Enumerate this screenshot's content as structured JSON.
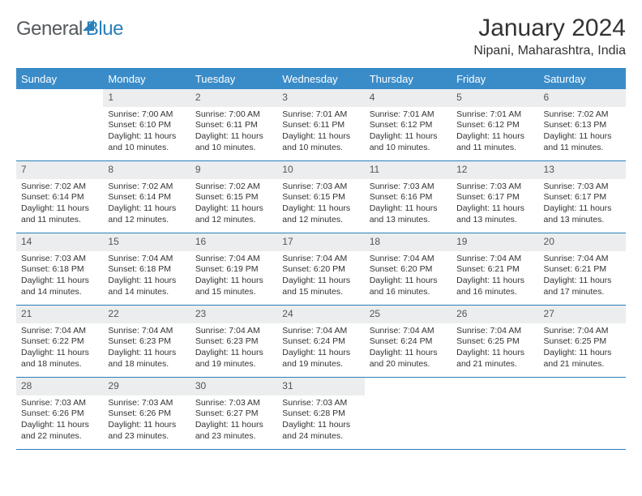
{
  "brand": {
    "part1": "General",
    "part2": "Blue"
  },
  "title": "January 2024",
  "location": "Nipani, Maharashtra, India",
  "colors": {
    "header_bg": "#3a8cc9",
    "header_text": "#ffffff",
    "border": "#2a7fba",
    "daynum_bg": "#ecedee",
    "text": "#333333",
    "brand_gray": "#555a5e",
    "brand_blue": "#2a7fba",
    "background": "#ffffff"
  },
  "typography": {
    "title_fontsize": 30,
    "location_fontsize": 16,
    "header_fontsize": 13,
    "daynum_fontsize": 12,
    "cell_fontsize": 10.5
  },
  "day_names": [
    "Sunday",
    "Monday",
    "Tuesday",
    "Wednesday",
    "Thursday",
    "Friday",
    "Saturday"
  ],
  "first_weekday_index": 1,
  "days": [
    {
      "n": 1,
      "sunrise": "7:00 AM",
      "sunset": "6:10 PM",
      "daylight": "11 hours and 10 minutes."
    },
    {
      "n": 2,
      "sunrise": "7:00 AM",
      "sunset": "6:11 PM",
      "daylight": "11 hours and 10 minutes."
    },
    {
      "n": 3,
      "sunrise": "7:01 AM",
      "sunset": "6:11 PM",
      "daylight": "11 hours and 10 minutes."
    },
    {
      "n": 4,
      "sunrise": "7:01 AM",
      "sunset": "6:12 PM",
      "daylight": "11 hours and 10 minutes."
    },
    {
      "n": 5,
      "sunrise": "7:01 AM",
      "sunset": "6:12 PM",
      "daylight": "11 hours and 11 minutes."
    },
    {
      "n": 6,
      "sunrise": "7:02 AM",
      "sunset": "6:13 PM",
      "daylight": "11 hours and 11 minutes."
    },
    {
      "n": 7,
      "sunrise": "7:02 AM",
      "sunset": "6:14 PM",
      "daylight": "11 hours and 11 minutes."
    },
    {
      "n": 8,
      "sunrise": "7:02 AM",
      "sunset": "6:14 PM",
      "daylight": "11 hours and 12 minutes."
    },
    {
      "n": 9,
      "sunrise": "7:02 AM",
      "sunset": "6:15 PM",
      "daylight": "11 hours and 12 minutes."
    },
    {
      "n": 10,
      "sunrise": "7:03 AM",
      "sunset": "6:15 PM",
      "daylight": "11 hours and 12 minutes."
    },
    {
      "n": 11,
      "sunrise": "7:03 AM",
      "sunset": "6:16 PM",
      "daylight": "11 hours and 13 minutes."
    },
    {
      "n": 12,
      "sunrise": "7:03 AM",
      "sunset": "6:17 PM",
      "daylight": "11 hours and 13 minutes."
    },
    {
      "n": 13,
      "sunrise": "7:03 AM",
      "sunset": "6:17 PM",
      "daylight": "11 hours and 13 minutes."
    },
    {
      "n": 14,
      "sunrise": "7:03 AM",
      "sunset": "6:18 PM",
      "daylight": "11 hours and 14 minutes."
    },
    {
      "n": 15,
      "sunrise": "7:04 AM",
      "sunset": "6:18 PM",
      "daylight": "11 hours and 14 minutes."
    },
    {
      "n": 16,
      "sunrise": "7:04 AM",
      "sunset": "6:19 PM",
      "daylight": "11 hours and 15 minutes."
    },
    {
      "n": 17,
      "sunrise": "7:04 AM",
      "sunset": "6:20 PM",
      "daylight": "11 hours and 15 minutes."
    },
    {
      "n": 18,
      "sunrise": "7:04 AM",
      "sunset": "6:20 PM",
      "daylight": "11 hours and 16 minutes."
    },
    {
      "n": 19,
      "sunrise": "7:04 AM",
      "sunset": "6:21 PM",
      "daylight": "11 hours and 16 minutes."
    },
    {
      "n": 20,
      "sunrise": "7:04 AM",
      "sunset": "6:21 PM",
      "daylight": "11 hours and 17 minutes."
    },
    {
      "n": 21,
      "sunrise": "7:04 AM",
      "sunset": "6:22 PM",
      "daylight": "11 hours and 18 minutes."
    },
    {
      "n": 22,
      "sunrise": "7:04 AM",
      "sunset": "6:23 PM",
      "daylight": "11 hours and 18 minutes."
    },
    {
      "n": 23,
      "sunrise": "7:04 AM",
      "sunset": "6:23 PM",
      "daylight": "11 hours and 19 minutes."
    },
    {
      "n": 24,
      "sunrise": "7:04 AM",
      "sunset": "6:24 PM",
      "daylight": "11 hours and 19 minutes."
    },
    {
      "n": 25,
      "sunrise": "7:04 AM",
      "sunset": "6:24 PM",
      "daylight": "11 hours and 20 minutes."
    },
    {
      "n": 26,
      "sunrise": "7:04 AM",
      "sunset": "6:25 PM",
      "daylight": "11 hours and 21 minutes."
    },
    {
      "n": 27,
      "sunrise": "7:04 AM",
      "sunset": "6:25 PM",
      "daylight": "11 hours and 21 minutes."
    },
    {
      "n": 28,
      "sunrise": "7:03 AM",
      "sunset": "6:26 PM",
      "daylight": "11 hours and 22 minutes."
    },
    {
      "n": 29,
      "sunrise": "7:03 AM",
      "sunset": "6:26 PM",
      "daylight": "11 hours and 23 minutes."
    },
    {
      "n": 30,
      "sunrise": "7:03 AM",
      "sunset": "6:27 PM",
      "daylight": "11 hours and 23 minutes."
    },
    {
      "n": 31,
      "sunrise": "7:03 AM",
      "sunset": "6:28 PM",
      "daylight": "11 hours and 24 minutes."
    }
  ],
  "labels": {
    "sunrise": "Sunrise:",
    "sunset": "Sunset:",
    "daylight": "Daylight:"
  }
}
